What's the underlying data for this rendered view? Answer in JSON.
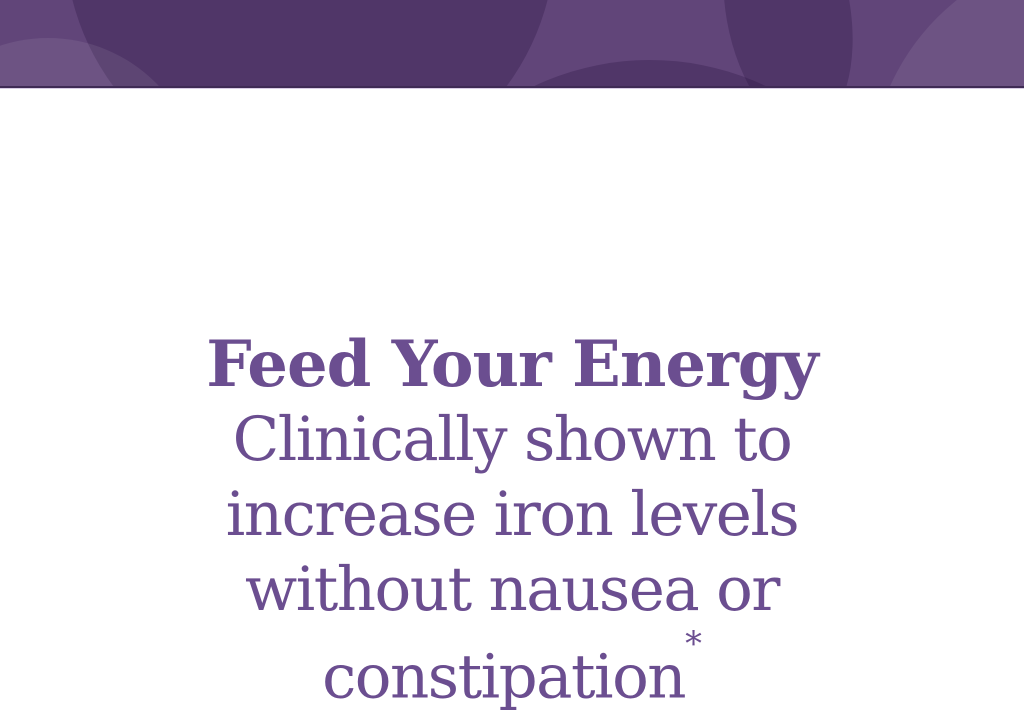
{
  "colors": {
    "background": "#ffffff",
    "banner_base": "#614579",
    "banner_circle_dark": "#2a1442",
    "banner_circle_light": "#ffffff",
    "banner_border": "#3f2b55",
    "banner_underline": "#d8cce4",
    "text": "#6b4e90"
  },
  "headline": "Feed Your Energy",
  "tagline": {
    "lines": [
      "Clinically shown to",
      "increase iron levels",
      "without nausea or",
      "constipation"
    ],
    "footnote_marker": "*"
  }
}
